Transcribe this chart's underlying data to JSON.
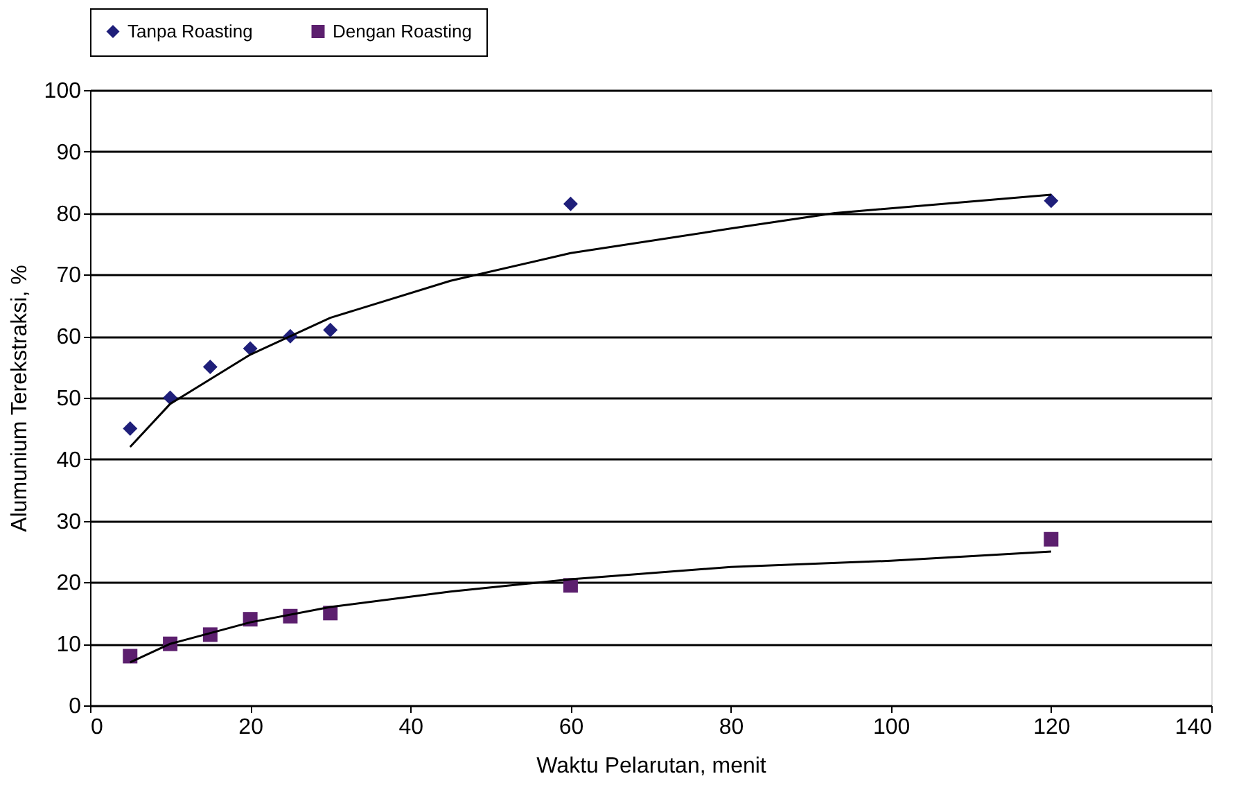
{
  "chart_data": {
    "type": "scatter",
    "xlabel": "Waktu Pelarutan, menit",
    "ylabel": "Alumunium Terekstraksi, %",
    "xlim": [
      0,
      140
    ],
    "xticks": [
      0,
      20,
      40,
      60,
      80,
      100,
      120,
      140
    ],
    "ylim": [
      0,
      100
    ],
    "yticks": [
      0,
      10,
      20,
      30,
      40,
      50,
      60,
      70,
      80,
      90,
      100
    ],
    "grid": "y",
    "legend": "top",
    "series": [
      {
        "name": "Tanpa Roasting",
        "color": "#1f1f7a",
        "marker": "diamond",
        "x": [
          5,
          10,
          15,
          20,
          25,
          30,
          60,
          120
        ],
        "values": [
          45,
          50,
          55,
          58,
          60,
          61,
          81.5,
          82
        ]
      },
      {
        "name": "Dengan Roasting",
        "color": "#5c1f6e",
        "marker": "square",
        "x": [
          5,
          10,
          15,
          20,
          25,
          30,
          60,
          120
        ],
        "values": [
          8,
          10,
          11.5,
          14,
          14.5,
          15,
          19.5,
          27
        ]
      },
      {
        "type": "line",
        "color": "#000000",
        "marker": "none",
        "x": [
          5,
          10,
          20,
          30,
          45,
          60,
          80,
          93,
          120
        ],
        "values": [
          42,
          49,
          57,
          63,
          69,
          73.5,
          77.5,
          80,
          83
        ]
      },
      {
        "type": "line",
        "color": "#000000",
        "marker": "none",
        "x": [
          5,
          10,
          20,
          30,
          45,
          60,
          80,
          100,
          120
        ],
        "values": [
          7,
          10,
          13.5,
          16,
          18.5,
          20.5,
          22.5,
          23.5,
          25
        ]
      }
    ]
  }
}
